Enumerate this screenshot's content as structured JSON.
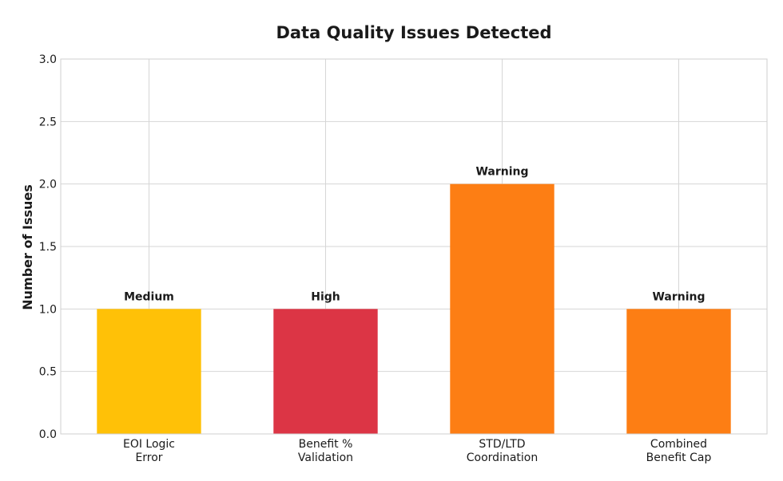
{
  "chart_data": {
    "type": "bar",
    "title": "Data Quality Issues Detected",
    "xlabel": "",
    "ylabel": "Number of Issues",
    "ylim": [
      0,
      3.0
    ],
    "yticks": [
      "0.0",
      "0.5",
      "1.0",
      "1.5",
      "2.0",
      "2.5",
      "3.0"
    ],
    "ytick_values": [
      0,
      0.5,
      1.0,
      1.5,
      2.0,
      2.5,
      3.0
    ],
    "grid": true,
    "legend": "none",
    "categories": [
      [
        "EOI Logic",
        "Error"
      ],
      [
        "Benefit %",
        "Validation"
      ],
      [
        "STD/LTD",
        "Coordination"
      ],
      [
        "Combined",
        "Benefit Cap"
      ]
    ],
    "values": [
      1,
      1,
      2,
      1
    ],
    "bar_labels": [
      "Medium",
      "High",
      "Warning",
      "Warning"
    ],
    "colors": [
      "#FFC107",
      "#DC3545",
      "#FD7E14",
      "#FD7E14"
    ]
  }
}
